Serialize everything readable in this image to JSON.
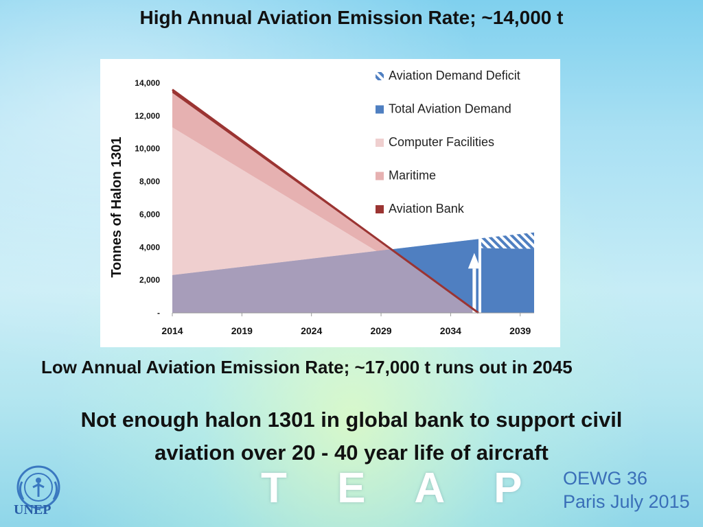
{
  "slide": {
    "title": "High Annual Aviation Emission Rate; ~14,000 t",
    "subtitle_low": "Low Annual Aviation Emission Rate; ~17,000 t runs out in  2045",
    "conclusion_line1": "Not enough halon 1301 in global bank to support civil",
    "conclusion_line2": "aviation over 20 - 40 year life of aircraft",
    "teap": "T E A P",
    "event_line1": "OEWG 36",
    "event_line2": "Paris July 2015",
    "unep": "UNEP",
    "colors": {
      "deficit": "#4f7fc1",
      "total_demand": "#4f7fc1",
      "computer": "#efcfcf",
      "maritime": "#e6b1b1",
      "aviation_bank": "#9b3432",
      "overlap": "#a79dba",
      "title_blue": "#3a6fb8"
    }
  },
  "chart_data": {
    "type": "area",
    "ylabel": "Tonnes of Halon 1301",
    "xlabel": "",
    "ylim": [
      0,
      14000
    ],
    "yticks": [
      0,
      2000,
      4000,
      6000,
      8000,
      10000,
      12000,
      14000
    ],
    "ytick_labels": [
      "-",
      "2,000",
      "4,000",
      "6,000",
      "8,000",
      "10,000",
      "12,000",
      "14,000"
    ],
    "xlim": [
      2014,
      2040
    ],
    "xticks": [
      2014,
      2019,
      2024,
      2029,
      2034,
      2039
    ],
    "xtick_labels": [
      "2014",
      "2019",
      "2024",
      "2029",
      "2034",
      "2039"
    ],
    "legend": [
      "Aviation Demand Deficit",
      "Total Aviation Demand",
      "Computer Facilities",
      "Maritime",
      "Aviation Bank"
    ],
    "series": [
      {
        "name": "Computer Facilities",
        "x": [
          2014,
          2036
        ],
        "values": [
          11300,
          0
        ]
      },
      {
        "name": "Maritime",
        "x": [
          2014,
          2036
        ],
        "values": [
          13400,
          0
        ]
      },
      {
        "name": "Aviation Bank",
        "x": [
          2014,
          2036
        ],
        "values": [
          13600,
          0
        ]
      },
      {
        "name": "Total Aviation Demand",
        "x": [
          2014,
          2036,
          2040
        ],
        "values": [
          2300,
          4500,
          3900
        ]
      },
      {
        "name": "Aviation Demand Deficit",
        "x": [
          2036,
          2040
        ],
        "values": [
          1000,
          1000
        ]
      }
    ],
    "annotation": "arrow-up at 2036"
  }
}
